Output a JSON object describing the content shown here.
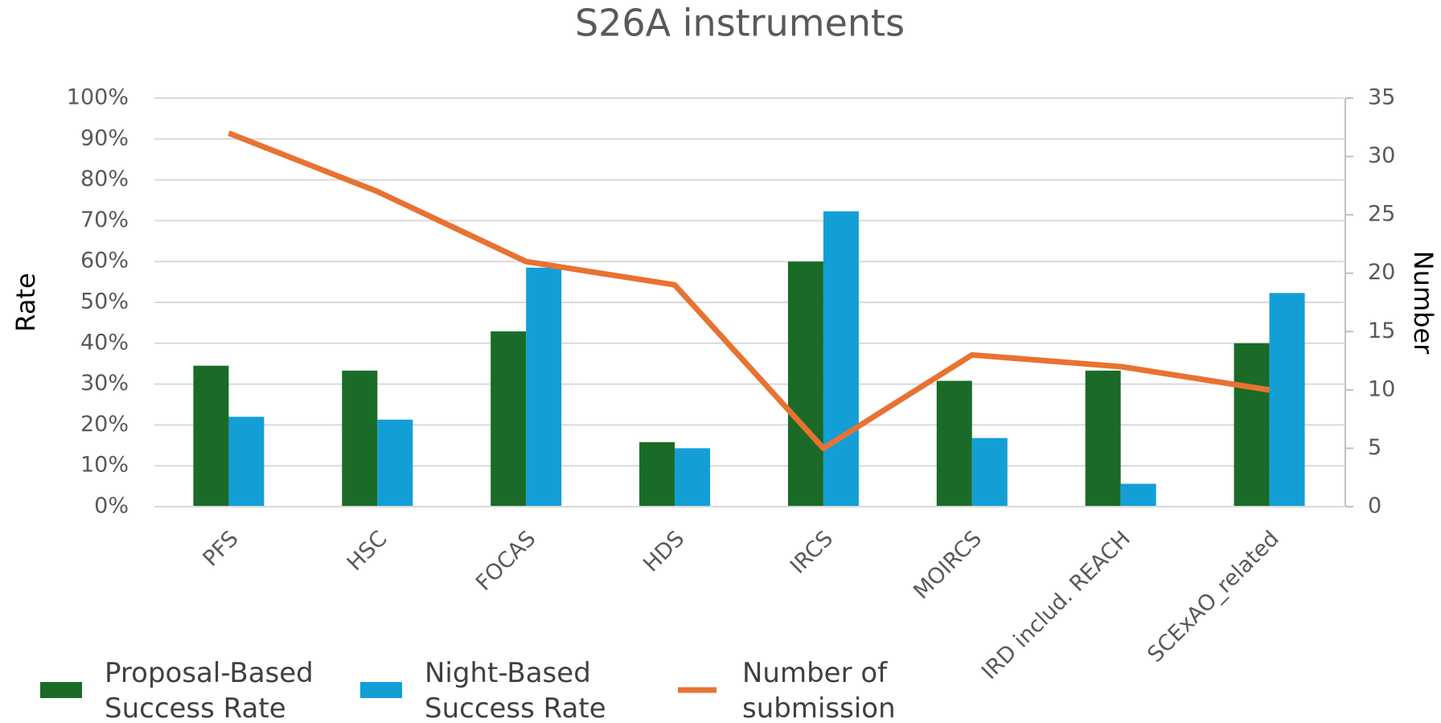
{
  "chart_data": {
    "type": "bar_line",
    "title": "S26A instruments",
    "y_label": "Rate",
    "y2_label": "Number",
    "categories": [
      "PFS",
      "HSC",
      "FOCAS",
      "HDS",
      "IRCS",
      "MOIRCS",
      "IRD includ. REACH",
      "SCExAO_related"
    ],
    "series": [
      {
        "name": "Proposal-Based Success Rate",
        "type": "bar",
        "color": "#1a6b27",
        "values": [
          34.5,
          33.3,
          42.9,
          15.8,
          60,
          30.8,
          33.3,
          40
        ]
      },
      {
        "name": "Night-Based Success Rate",
        "type": "bar",
        "color": "#139fd6",
        "values": [
          22,
          21.3,
          58.5,
          14.3,
          72.3,
          16.8,
          5.6,
          52.3
        ]
      },
      {
        "name": "Number of submission",
        "type": "line",
        "axis": "y2",
        "color": "#e87232",
        "values": [
          32,
          27,
          21,
          19,
          5,
          13,
          12,
          10
        ]
      }
    ],
    "ylim": [
      0,
      100
    ],
    "yticks": [
      {
        "value": 0,
        "label": "0%"
      },
      {
        "value": 10,
        "label": "10%"
      },
      {
        "value": 20,
        "label": "20%"
      },
      {
        "value": 30,
        "label": "30%"
      },
      {
        "value": 40,
        "label": "40%"
      },
      {
        "value": 50,
        "label": "50%"
      },
      {
        "value": 60,
        "label": "60%"
      },
      {
        "value": 70,
        "label": "70%"
      },
      {
        "value": 80,
        "label": "80%"
      },
      {
        "value": 90,
        "label": "90%"
      },
      {
        "value": 100,
        "label": "100%"
      }
    ],
    "y2lim": [
      0,
      35
    ],
    "y2ticks": [
      0,
      5,
      10,
      15,
      20,
      25,
      30,
      35
    ],
    "grid": true
  }
}
